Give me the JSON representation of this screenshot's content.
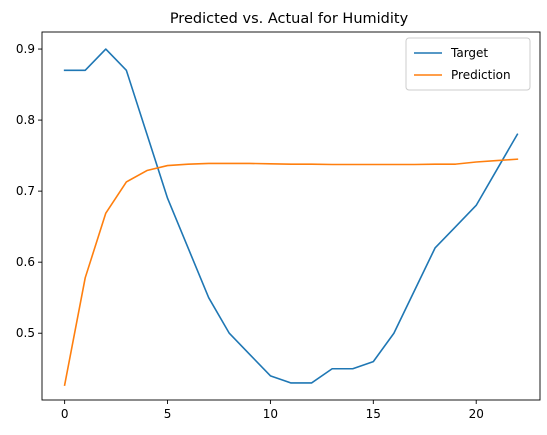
{
  "chart_data": {
    "type": "line",
    "title": "Predicted vs. Actual for Humidity",
    "xlabel": "",
    "ylabel": "",
    "xlim": [
      -1.1,
      23.1
    ],
    "ylim": [
      0.406,
      0.924
    ],
    "x_ticks": [
      0,
      5,
      10,
      15,
      20
    ],
    "y_ticks": [
      0.5,
      0.6,
      0.7,
      0.8,
      0.9
    ],
    "y_tick_labels": [
      "0.5",
      "0.6",
      "0.7",
      "0.8",
      "0.9"
    ],
    "grid": false,
    "legend_position": "top-right",
    "x": [
      0,
      1,
      2,
      3,
      4,
      5,
      6,
      7,
      8,
      9,
      10,
      11,
      12,
      13,
      14,
      15,
      16,
      17,
      18,
      19,
      20,
      21,
      22
    ],
    "series": [
      {
        "name": "Target",
        "color": "#1f77b4",
        "values": [
          0.87,
          0.87,
          0.9,
          0.87,
          0.78,
          0.69,
          0.62,
          0.55,
          0.5,
          0.47,
          0.44,
          0.43,
          0.43,
          0.45,
          0.45,
          0.46,
          0.5,
          0.56,
          0.62,
          0.65,
          0.68,
          0.73,
          0.78
        ]
      },
      {
        "name": "Prediction",
        "color": "#ff7f0e",
        "values": [
          0.427,
          0.578,
          0.669,
          0.713,
          0.729,
          0.736,
          0.738,
          0.739,
          0.739,
          0.739,
          0.7385,
          0.738,
          0.738,
          0.7375,
          0.7375,
          0.7375,
          0.7375,
          0.7375,
          0.738,
          0.738,
          0.741,
          0.743,
          0.745
        ]
      }
    ]
  }
}
